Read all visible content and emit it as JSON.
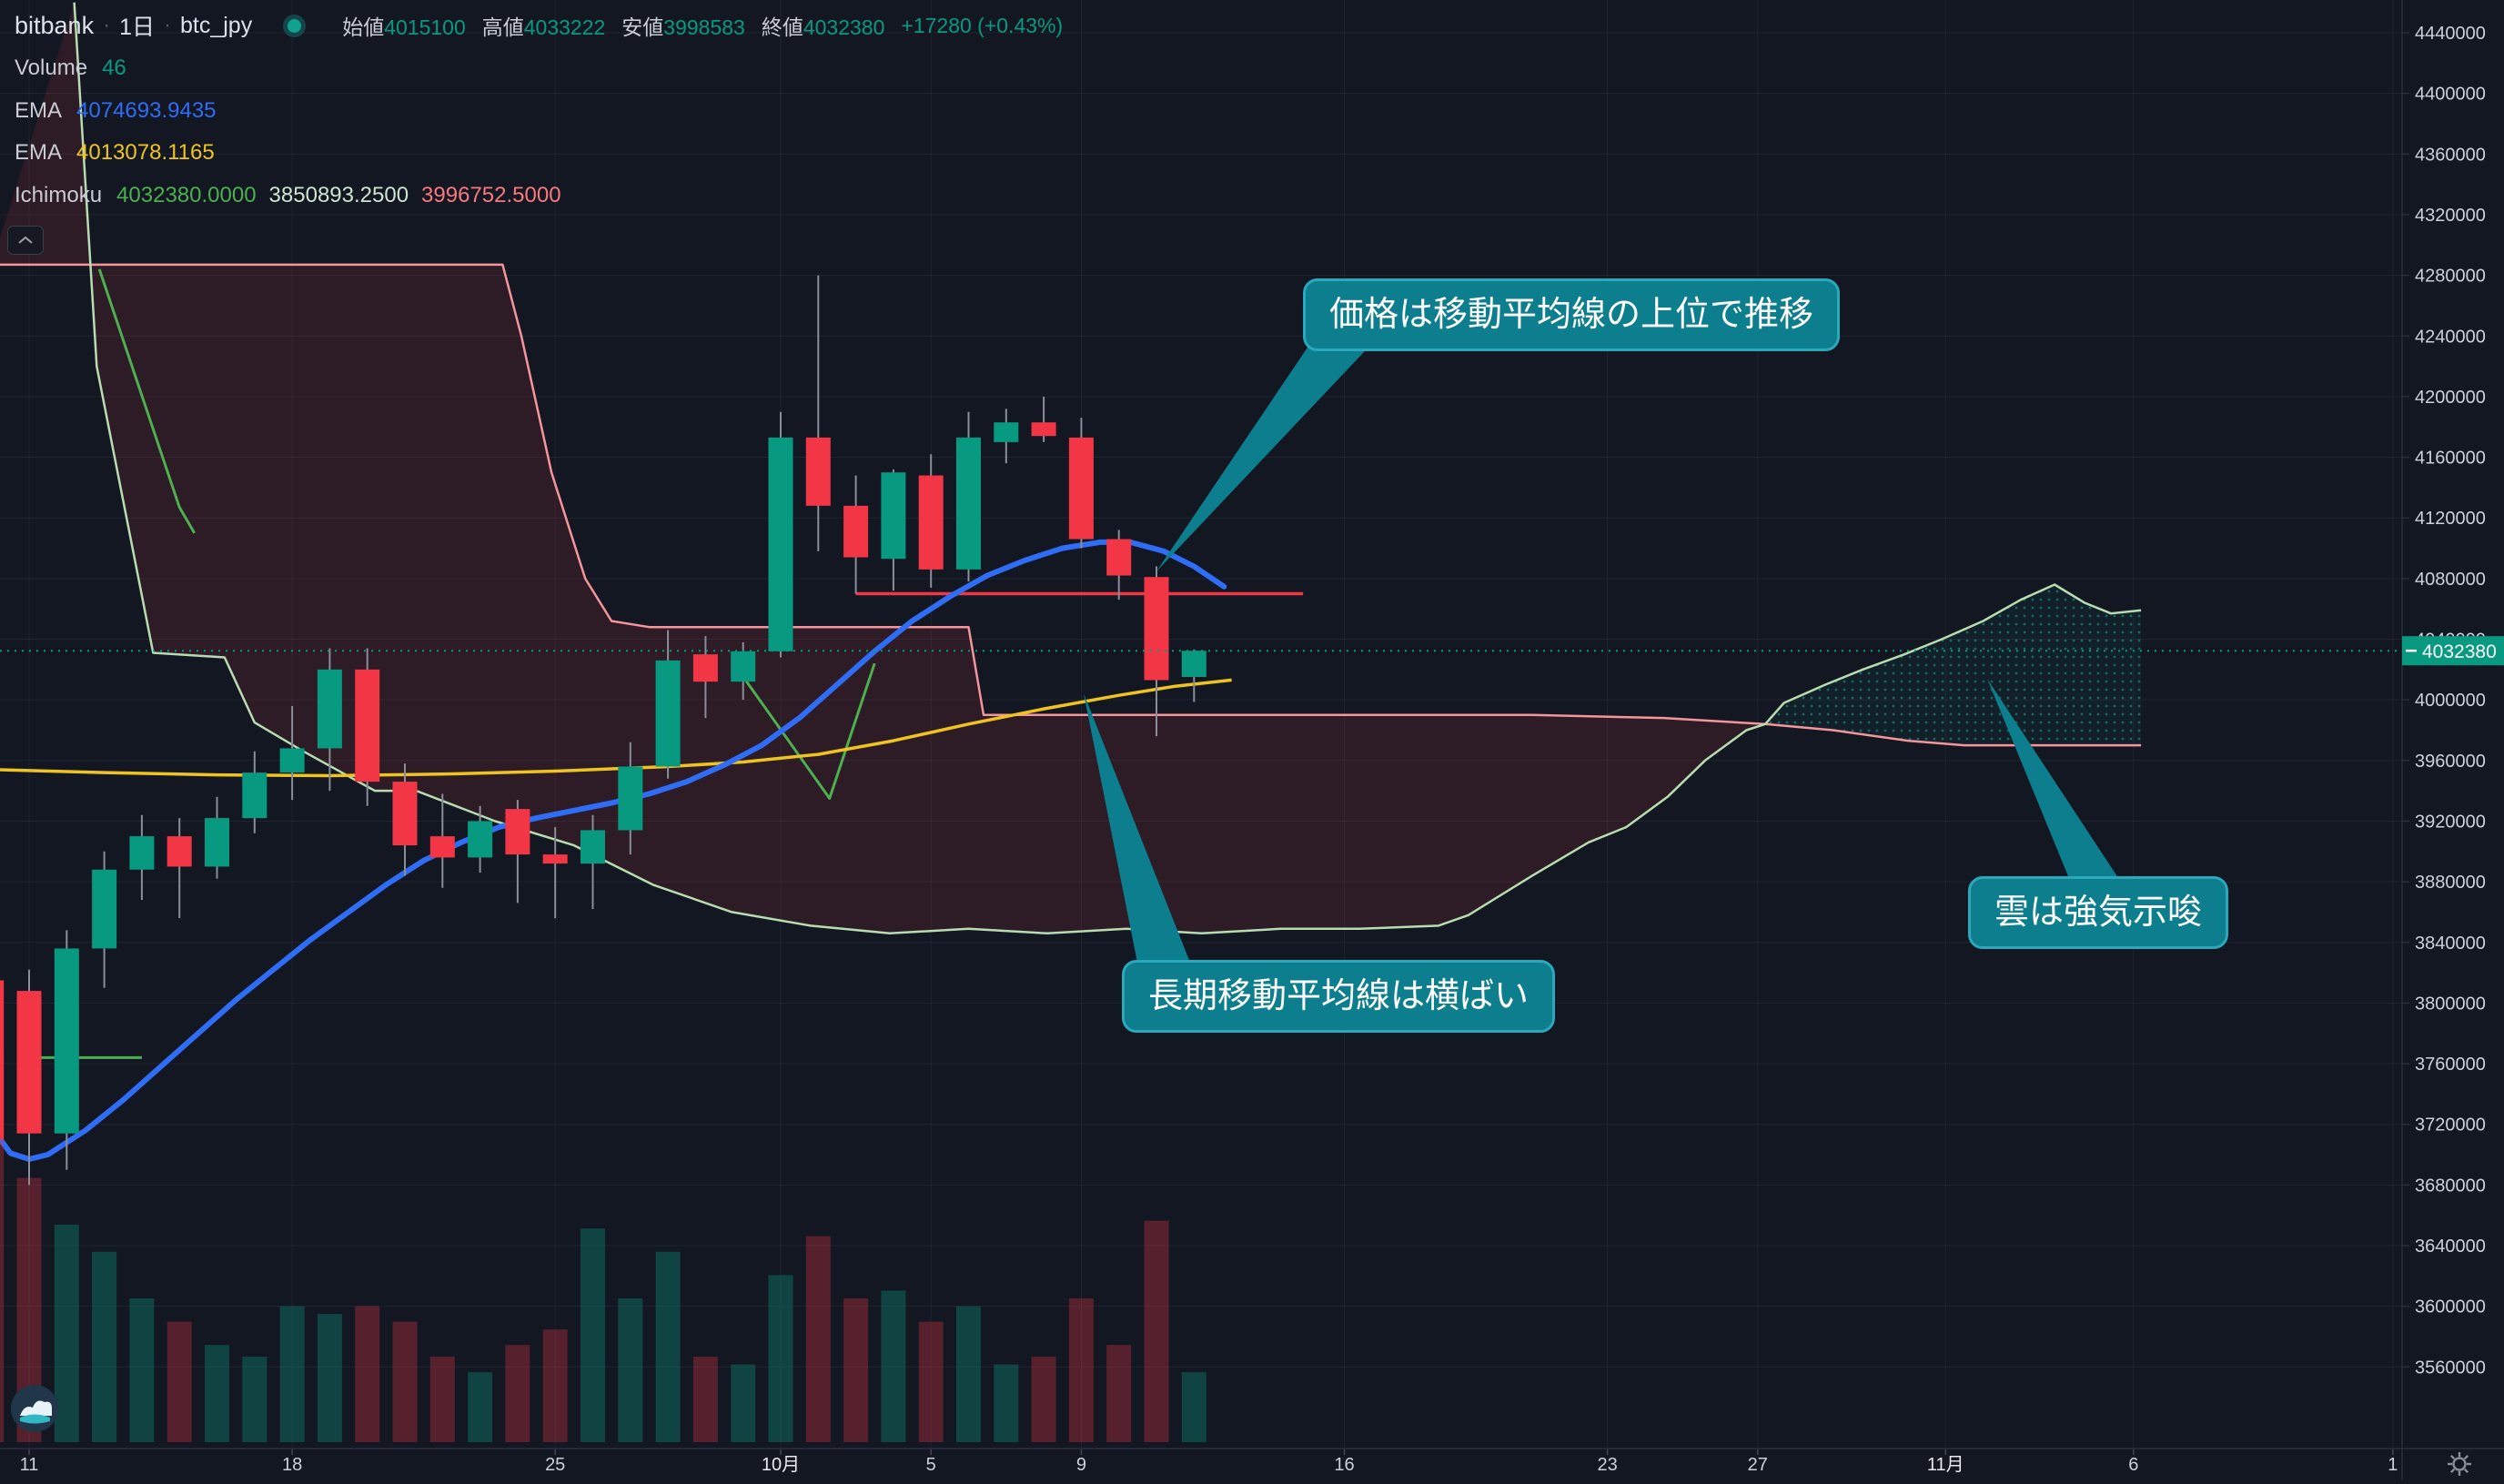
{
  "header": {
    "exchange": "bitbank",
    "separator": "·",
    "interval": "1日",
    "symbol": "btc_jpy",
    "ohlc": [
      {
        "label": "始値",
        "value": "4015100"
      },
      {
        "label": "高値",
        "value": "4033222"
      },
      {
        "label": "安値",
        "value": "3998583"
      },
      {
        "label": "終値",
        "value": "4032380"
      }
    ],
    "change": "+17280 (+0.43%)"
  },
  "legend": {
    "volume": {
      "label": "Volume",
      "value": "46"
    },
    "ema_fast": {
      "label": "EMA",
      "value": "4074693.9435"
    },
    "ema_slow": {
      "label": "EMA",
      "value": "4013078.1165"
    },
    "ichimoku": {
      "label": "Ichimoku",
      "values": [
        "4032380.0000",
        "3850893.2500",
        "3996752.5000"
      ]
    }
  },
  "annotations": [
    {
      "text": "価格は移動平均線の上位で推移"
    },
    {
      "text": "長期移動平均線は横ばい"
    },
    {
      "text": "雲は強気示唆"
    }
  ],
  "price_axis": {
    "ticks": [
      4440000,
      4400000,
      4360000,
      4320000,
      4280000,
      4240000,
      4200000,
      4160000,
      4120000,
      4080000,
      4040000,
      4000000,
      3960000,
      3920000,
      3880000,
      3840000,
      3800000,
      3760000,
      3720000,
      3680000,
      3640000,
      3600000,
      3560000
    ],
    "last_price_label": "4032380"
  },
  "time_axis": {
    "ticks": [
      {
        "label": "11",
        "d": 0,
        "month": false
      },
      {
        "label": "18",
        "d": 7,
        "month": false
      },
      {
        "label": "25",
        "d": 14,
        "month": false
      },
      {
        "label": "10月",
        "d": 20,
        "month": true
      },
      {
        "label": "5",
        "d": 24,
        "month": false
      },
      {
        "label": "9",
        "d": 28,
        "month": false
      },
      {
        "label": "16",
        "d": 35,
        "month": false
      },
      {
        "label": "23",
        "d": 42,
        "month": false
      },
      {
        "label": "27",
        "d": 46,
        "month": false
      },
      {
        "label": "11月",
        "d": 51,
        "month": true
      },
      {
        "label": "6",
        "d": 56,
        "month": false
      },
      {
        "label": "1",
        "d": 62.9,
        "month": false
      }
    ]
  },
  "chart_data": {
    "type": "candlestick+ichimoku",
    "title": "bitbank btc_jpy 1日",
    "ylim": [
      3540000,
      4460000
    ],
    "grid": true,
    "current_price": 4032380,
    "candles": [
      [
        -1,
        3815000,
        3832000,
        3675000,
        3710000,
        1.0
      ],
      [
        0,
        3808000,
        3822000,
        3680000,
        3714000,
        0.68
      ],
      [
        1,
        3714000,
        3848000,
        3690000,
        3836000,
        0.56
      ],
      [
        2,
        3836000,
        3900000,
        3810000,
        3888000,
        0.49
      ],
      [
        3,
        3888000,
        3924000,
        3868000,
        3910000,
        0.37
      ],
      [
        4,
        3910000,
        3922000,
        3856000,
        3890000,
        0.31
      ],
      [
        5,
        3890000,
        3936000,
        3882000,
        3922000,
        0.25
      ],
      [
        6,
        3922000,
        3966000,
        3912000,
        3952000,
        0.22
      ],
      [
        7,
        3952000,
        3996000,
        3934000,
        3968000,
        0.35
      ],
      [
        8,
        3968000,
        4034000,
        3940000,
        4020000,
        0.33
      ],
      [
        9,
        4020000,
        4034000,
        3930000,
        3946000,
        0.35
      ],
      [
        10,
        3946000,
        3958000,
        3884000,
        3904000,
        0.31
      ],
      [
        11,
        3910000,
        3938000,
        3876000,
        3896000,
        0.22
      ],
      [
        12,
        3896000,
        3930000,
        3886000,
        3920000,
        0.18
      ],
      [
        13,
        3928000,
        3934000,
        3866000,
        3898000,
        0.25
      ],
      [
        14,
        3898000,
        3916000,
        3856000,
        3892000,
        0.29
      ],
      [
        15,
        3892000,
        3924000,
        3862000,
        3914000,
        0.55
      ],
      [
        16,
        3914000,
        3972000,
        3898000,
        3956000,
        0.37
      ],
      [
        17,
        3956000,
        4046000,
        3948000,
        4026000,
        0.49
      ],
      [
        18,
        4030000,
        4042000,
        3988000,
        4012000,
        0.22
      ],
      [
        19,
        4012000,
        4038000,
        4000000,
        4032000,
        0.2
      ],
      [
        20,
        4032000,
        4190000,
        4028000,
        4173000,
        0.43
      ],
      [
        21,
        4173000,
        4280000,
        4098000,
        4128000,
        0.53
      ],
      [
        22,
        4128000,
        4148000,
        4070000,
        4094000,
        0.37
      ],
      [
        23,
        4093000,
        4152000,
        4072000,
        4150000,
        0.39
      ],
      [
        24,
        4148000,
        4162000,
        4074000,
        4086000,
        0.31
      ],
      [
        25,
        4086000,
        4190000,
        4078000,
        4173000,
        0.35
      ],
      [
        26,
        4170000,
        4192000,
        4156000,
        4183000,
        0.2
      ],
      [
        27,
        4183000,
        4200000,
        4170000,
        4174000,
        0.22
      ],
      [
        28,
        4173000,
        4186000,
        4100000,
        4106000,
        0.37
      ],
      [
        29,
        4106000,
        4112000,
        4066000,
        4082000,
        0.25
      ],
      [
        30,
        4081000,
        4088000,
        3976000,
        4013000,
        0.57
      ],
      [
        31,
        4015100,
        4033222,
        3998583,
        4032380,
        0.18
      ]
    ],
    "ema_fast_points": [
      [
        -1,
        3718000
      ],
      [
        -0.5,
        3701000
      ],
      [
        0,
        3697000
      ],
      [
        0.5,
        3700000
      ],
      [
        1.5,
        3716000
      ],
      [
        2.5,
        3736000
      ],
      [
        3.5,
        3758000
      ],
      [
        4.5,
        3780000
      ],
      [
        5.5,
        3802000
      ],
      [
        6.5,
        3822000
      ],
      [
        7.5,
        3842000
      ],
      [
        8.5,
        3860000
      ],
      [
        9.5,
        3878000
      ],
      [
        10.5,
        3894000
      ],
      [
        11.5,
        3906000
      ],
      [
        12.5,
        3916000
      ],
      [
        13.5,
        3922000
      ],
      [
        14.5,
        3927000
      ],
      [
        15.5,
        3932000
      ],
      [
        16.5,
        3938000
      ],
      [
        17.5,
        3946000
      ],
      [
        18.5,
        3957000
      ],
      [
        19.5,
        3970000
      ],
      [
        20.5,
        3988000
      ],
      [
        21.5,
        4010000
      ],
      [
        22.5,
        4032000
      ],
      [
        23.5,
        4052000
      ],
      [
        24.5,
        4068000
      ],
      [
        25.5,
        4082000
      ],
      [
        26.5,
        4092000
      ],
      [
        27.5,
        4100000
      ],
      [
        28.5,
        4104000
      ],
      [
        29.3,
        4104000
      ],
      [
        30.2,
        4098000
      ],
      [
        31,
        4088000
      ],
      [
        31.8,
        4074693
      ]
    ],
    "ema_slow_points": [
      [
        -1,
        3954000
      ],
      [
        2,
        3952000
      ],
      [
        5,
        3950500
      ],
      [
        8,
        3950000
      ],
      [
        11,
        3951000
      ],
      [
        14,
        3953000
      ],
      [
        17,
        3956000
      ],
      [
        19,
        3959000
      ],
      [
        21,
        3964000
      ],
      [
        23,
        3973000
      ],
      [
        25,
        3984000
      ],
      [
        27,
        3994000
      ],
      [
        29,
        4003000
      ],
      [
        30.5,
        4009000
      ],
      [
        32,
        4013078
      ]
    ],
    "senkou_a": [
      [
        -1,
        4287000
      ],
      [
        12.6,
        4287000
      ],
      [
        13.1,
        4240000
      ],
      [
        13.9,
        4150000
      ],
      [
        14.8,
        4080000
      ],
      [
        15.5,
        4052000
      ],
      [
        16.5,
        4048000
      ],
      [
        25.0,
        4048000
      ],
      [
        25.4,
        3990000
      ],
      [
        40,
        3990000
      ],
      [
        43.5,
        3988000
      ],
      [
        46.2,
        3984000
      ],
      [
        48,
        3980000
      ],
      [
        50,
        3973000
      ],
      [
        51.5,
        3970000
      ],
      [
        56.2,
        3970000
      ]
    ],
    "senkou_b": [
      [
        1.2,
        4460000
      ],
      [
        1.8,
        4220000
      ],
      [
        3.3,
        4031000
      ],
      [
        5.2,
        4028000
      ],
      [
        6.0,
        3985000
      ],
      [
        7.3,
        3966000
      ],
      [
        9.2,
        3940000
      ],
      [
        10.3,
        3940000
      ],
      [
        12.4,
        3920000
      ],
      [
        14.5,
        3904000
      ],
      [
        16.6,
        3878000
      ],
      [
        18.7,
        3860000
      ],
      [
        20.8,
        3851000
      ],
      [
        22.9,
        3846000
      ],
      [
        25.0,
        3849000
      ],
      [
        27.1,
        3846000
      ],
      [
        29.2,
        3849000
      ],
      [
        31.2,
        3846000
      ],
      [
        33.3,
        3849000
      ],
      [
        35.4,
        3849000
      ],
      [
        37.5,
        3851000
      ],
      [
        38.3,
        3858000
      ],
      [
        40.0,
        3884000
      ],
      [
        41.5,
        3906000
      ],
      [
        42.5,
        3916000
      ],
      [
        43.6,
        3936000
      ],
      [
        44.6,
        3960000
      ],
      [
        45.7,
        3980000
      ],
      [
        46.2,
        3984000
      ],
      [
        46.7,
        3998000
      ],
      [
        47.8,
        4010000
      ],
      [
        48.8,
        4020000
      ],
      [
        49.9,
        4030000
      ],
      [
        50.9,
        4040000
      ],
      [
        52.0,
        4052000
      ],
      [
        53.0,
        4066000
      ],
      [
        53.9,
        4076000
      ],
      [
        54.7,
        4064000
      ],
      [
        55.4,
        4057000
      ],
      [
        56.2,
        4059000
      ]
    ],
    "cloud_crossover_d": 46.2,
    "kijun_segment": [
      [
        22,
        4070000
      ],
      [
        33.9,
        4070000
      ]
    ],
    "chikou_segments": [
      [
        [
          1.87,
          4284000
        ],
        [
          4.0,
          4127000
        ],
        [
          4.4,
          4110000
        ]
      ],
      [
        [
          18.75,
          4024000
        ],
        [
          21.3,
          3935000
        ],
        [
          22.5,
          4024000
        ]
      ],
      [
        [
          0.3,
          3764000
        ],
        [
          3.0,
          3764000
        ]
      ]
    ]
  },
  "colors": {
    "bg": "#131722",
    "grid": "rgba(240,243,250,0.06)",
    "axis_line": "#2a2e39",
    "axis_text": "#ccd0da",
    "axis_text_month": "#e8eaef",
    "up": "#089981",
    "down": "#f23645",
    "wick": "#8a8e99",
    "vol_up": "rgba(8,153,129,0.35)",
    "vol_down": "rgba(242,54,69,0.30)",
    "ema_fast": "#2f6df6",
    "ema_slow": "#f0c420",
    "senkou_a": "#f5949a",
    "senkou_b": "#b7dcb0",
    "kijun": "#f23645",
    "chikou": "#4caf50",
    "cloud_bear": "rgba(242,54,69,0.12)",
    "cloud_bull": "rgba(8,153,129,0.08)",
    "accent": "#089981",
    "note_bg": "#0d7e8d",
    "note_border": "#2aa9bc"
  }
}
